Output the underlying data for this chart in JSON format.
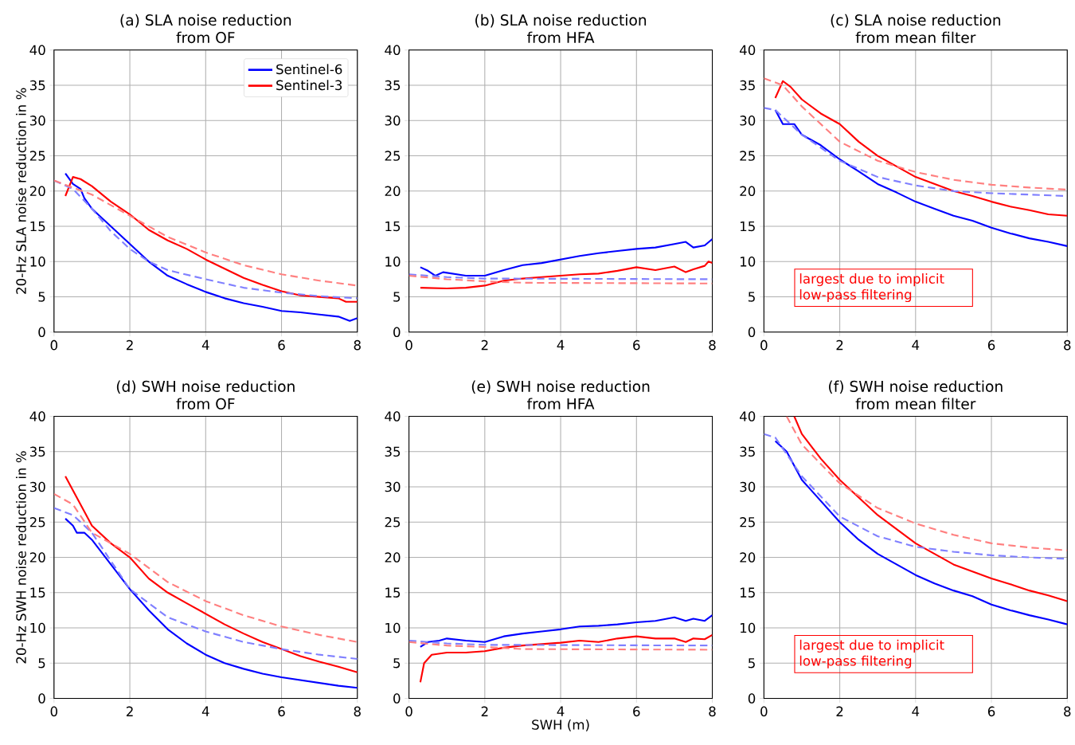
{
  "chart_data": [
    {
      "type": "line",
      "title": "(a) SLA noise reduction",
      "subtitle": "from OF",
      "ylabel": "20-Hz SLA noise reduction in %",
      "xlim": [
        0,
        8
      ],
      "ylim": [
        0,
        40
      ],
      "xticks": [
        0,
        2,
        4,
        6,
        8
      ],
      "yticks": [
        0,
        5,
        10,
        15,
        20,
        25,
        30,
        35,
        40
      ],
      "grid": true,
      "legend": "top right",
      "series": [
        {
          "name": "Sentinel-6",
          "color": "#0000ff",
          "x": [
            0.3,
            0.5,
            0.7,
            0.8,
            1,
            1.5,
            2,
            2.5,
            3,
            3.5,
            4,
            4.5,
            5,
            5.5,
            6,
            6.5,
            7,
            7.5,
            7.8,
            8
          ],
          "values": [
            22.5,
            21,
            20.3,
            19,
            17.5,
            15,
            12.5,
            10,
            8,
            6.8,
            5.7,
            4.8,
            4.1,
            3.6,
            3,
            2.8,
            2.5,
            2.2,
            1.6,
            2
          ]
        },
        {
          "name": "Sentinel-3",
          "color": "#ff0000",
          "x": [
            0.3,
            0.5,
            0.7,
            1,
            1.5,
            2,
            2.5,
            3,
            3.5,
            4,
            4.5,
            5,
            5.5,
            6,
            6.5,
            7,
            7.5,
            7.7,
            8
          ],
          "values": [
            19.3,
            22,
            21.7,
            20.7,
            18.5,
            16.7,
            14.5,
            13,
            11.8,
            10.3,
            9,
            7.7,
            6.7,
            5.8,
            5.2,
            5,
            4.8,
            4.3,
            4.3
          ]
        },
        {
          "color": "#8080ff",
          "line_style": "dashed",
          "x": [
            0,
            0.5,
            1,
            1.5,
            2,
            2.5,
            3,
            4,
            5,
            6,
            7,
            8
          ],
          "values": [
            21.5,
            20.3,
            17.5,
            14.3,
            11.8,
            10,
            8.8,
            7.5,
            6.3,
            5.6,
            5.1,
            4.8
          ]
        },
        {
          "color": "#ff8080",
          "line_style": "dashed",
          "x": [
            0,
            1,
            2,
            3,
            4,
            5,
            6,
            7,
            8
          ],
          "values": [
            21.5,
            19.5,
            16.5,
            13.5,
            11.3,
            9.5,
            8.2,
            7.3,
            6.6
          ]
        }
      ]
    },
    {
      "type": "line",
      "title": "(b) SLA noise reduction",
      "subtitle": "from HFA",
      "xlim": [
        0,
        8
      ],
      "ylim": [
        0,
        40
      ],
      "xticks": [
        0,
        2,
        4,
        6,
        8
      ],
      "yticks": [
        0,
        5,
        10,
        15,
        20,
        25,
        30,
        35,
        40
      ],
      "grid": true,
      "series": [
        {
          "color": "#0000ff",
          "x": [
            0.3,
            0.5,
            0.7,
            0.9,
            1.5,
            2,
            2.5,
            3,
            3.5,
            4,
            4.5,
            5,
            5.5,
            6,
            6.5,
            7,
            7.3,
            7.5,
            7.8,
            8
          ],
          "values": [
            9.2,
            8.7,
            8,
            8.5,
            8,
            8,
            8.8,
            9.5,
            9.8,
            10.3,
            10.8,
            11.2,
            11.5,
            11.8,
            12,
            12.5,
            12.8,
            12,
            12.3,
            13.2
          ]
        },
        {
          "color": "#ff0000",
          "x": [
            0.3,
            1,
            1.5,
            2,
            2.5,
            3,
            3.5,
            4,
            4.5,
            5,
            5.5,
            6,
            6.5,
            7,
            7.3,
            7.5,
            7.8,
            7.9,
            8
          ],
          "values": [
            6.3,
            6.2,
            6.3,
            6.6,
            7.3,
            7.6,
            7.8,
            8,
            8.2,
            8.3,
            8.7,
            9.2,
            8.8,
            9.3,
            8.5,
            8.9,
            9.4,
            10,
            9.8
          ]
        },
        {
          "color": "#8080ff",
          "line_style": "dashed",
          "x": [
            0,
            1,
            2,
            8
          ],
          "values": [
            8.2,
            7.8,
            7.6,
            7.5
          ]
        },
        {
          "color": "#ff8080",
          "line_style": "dashed",
          "x": [
            0,
            1,
            2,
            3,
            8
          ],
          "values": [
            8,
            7.5,
            7.2,
            7,
            6.9
          ]
        }
      ]
    },
    {
      "type": "line",
      "title": "(c) SLA noise reduction",
      "subtitle": "from mean filter",
      "xlim": [
        0,
        8
      ],
      "ylim": [
        0,
        40
      ],
      "xticks": [
        0,
        2,
        4,
        6,
        8
      ],
      "yticks": [
        0,
        5,
        10,
        15,
        20,
        25,
        30,
        35,
        40
      ],
      "grid": true,
      "annotations": [
        "largest due to implicit low-pass filtering"
      ],
      "series": [
        {
          "color": "#0000ff",
          "x": [
            0.3,
            0.5,
            0.8,
            1,
            1.5,
            2,
            2.5,
            3,
            3.5,
            4,
            4.5,
            5,
            5.5,
            6,
            6.5,
            7,
            7.5,
            8
          ],
          "values": [
            31.5,
            29.5,
            29.5,
            28,
            26.5,
            24.5,
            22.8,
            21,
            19.8,
            18.5,
            17.5,
            16.5,
            15.8,
            14.8,
            14,
            13.3,
            12.8,
            12.2
          ]
        },
        {
          "color": "#ff0000",
          "x": [
            0.3,
            0.5,
            0.7,
            1,
            1.5,
            2,
            2.5,
            3,
            3.5,
            4,
            4.5,
            5,
            5.5,
            6,
            6.5,
            7,
            7.5,
            8
          ],
          "values": [
            33.2,
            35.6,
            34.8,
            33,
            31,
            29.5,
            27,
            25,
            23.5,
            22,
            21,
            20,
            19.3,
            18.5,
            17.8,
            17.3,
            16.7,
            16.5
          ]
        },
        {
          "color": "#8080ff",
          "line_style": "dashed",
          "x": [
            0,
            0.3,
            1,
            2,
            3,
            4,
            5,
            6,
            7,
            8
          ],
          "values": [
            31.8,
            31.5,
            28,
            24.3,
            22,
            20.8,
            20,
            19.7,
            19.5,
            19.3
          ]
        },
        {
          "color": "#ff8080",
          "line_style": "dashed",
          "x": [
            0,
            0.5,
            1,
            2,
            3,
            4,
            5,
            6,
            7,
            8
          ],
          "values": [
            36,
            35,
            32,
            27,
            24.3,
            22.7,
            21.6,
            20.9,
            20.5,
            20.2
          ]
        }
      ]
    },
    {
      "type": "line",
      "title": "(d) SWH noise reduction",
      "subtitle": "from OF",
      "ylabel": "20-Hz SWH noise reduction in %",
      "xlim": [
        0,
        8
      ],
      "ylim": [
        0,
        40
      ],
      "xticks": [
        0,
        2,
        4,
        6,
        8
      ],
      "yticks": [
        0,
        5,
        10,
        15,
        20,
        25,
        30,
        35,
        40
      ],
      "grid": true,
      "series": [
        {
          "color": "#0000ff",
          "x": [
            0.3,
            0.5,
            0.6,
            0.8,
            1,
            1.5,
            2,
            2.5,
            3,
            3.5,
            4,
            4.5,
            5,
            5.5,
            6,
            6.5,
            7,
            7.5,
            8
          ],
          "values": [
            25.5,
            24.5,
            23.5,
            23.5,
            22.5,
            19,
            15.5,
            12.5,
            9.8,
            7.8,
            6.2,
            5,
            4.2,
            3.5,
            3,
            2.6,
            2.2,
            1.8,
            1.5
          ]
        },
        {
          "color": "#ff0000",
          "x": [
            0.3,
            0.5,
            0.8,
            1,
            1.5,
            2,
            2.5,
            3,
            3.5,
            4,
            4.5,
            5,
            5.5,
            6,
            6.5,
            7,
            7.5,
            8
          ],
          "values": [
            31.5,
            29.5,
            26.5,
            24.5,
            22,
            20,
            17,
            15,
            13.5,
            12,
            10.5,
            9.2,
            8,
            7,
            6,
            5.2,
            4.5,
            3.7
          ]
        },
        {
          "color": "#8080ff",
          "line_style": "dashed",
          "x": [
            0,
            0.5,
            1,
            2,
            3,
            4,
            5,
            6,
            7,
            8
          ],
          "values": [
            27,
            26,
            23.5,
            15.5,
            11.5,
            9.5,
            8,
            7,
            6.2,
            5.6
          ]
        },
        {
          "color": "#ff8080",
          "line_style": "dashed",
          "x": [
            0,
            0.5,
            1,
            2,
            3,
            4,
            5,
            6,
            7,
            8
          ],
          "values": [
            29,
            27.5,
            23.5,
            20.5,
            16.5,
            13.8,
            11.8,
            10.2,
            9,
            8
          ]
        }
      ]
    },
    {
      "type": "line",
      "title": "(e) SWH noise reduction",
      "subtitle": "from HFA",
      "xlabel": "SWH (m)",
      "xlim": [
        0,
        8
      ],
      "ylim": [
        0,
        40
      ],
      "xticks": [
        0,
        2,
        4,
        6,
        8
      ],
      "yticks": [
        0,
        5,
        10,
        15,
        20,
        25,
        30,
        35,
        40
      ],
      "grid": true,
      "series": [
        {
          "color": "#0000ff",
          "x": [
            0.3,
            0.5,
            0.8,
            1,
            1.5,
            2,
            2.5,
            3,
            3.5,
            4,
            4.5,
            5,
            5.5,
            6,
            6.5,
            7,
            7.3,
            7.5,
            7.8,
            8
          ],
          "values": [
            7.3,
            8,
            8.2,
            8.5,
            8.2,
            8,
            8.8,
            9.2,
            9.5,
            9.8,
            10.2,
            10.3,
            10.5,
            10.8,
            11,
            11.5,
            11,
            11.3,
            11,
            11.8
          ]
        },
        {
          "color": "#ff0000",
          "x": [
            0.3,
            0.4,
            0.6,
            1,
            1.5,
            2,
            2.5,
            3,
            3.5,
            4,
            4.5,
            5,
            5.5,
            6,
            6.5,
            7,
            7.3,
            7.5,
            7.8,
            8
          ],
          "values": [
            2.3,
            5,
            6.2,
            6.5,
            6.5,
            6.7,
            7.2,
            7.5,
            7.7,
            7.9,
            8.2,
            8,
            8.5,
            8.8,
            8.5,
            8.5,
            8,
            8.5,
            8.4,
            9
          ]
        },
        {
          "color": "#8080ff",
          "line_style": "dashed",
          "x": [
            0,
            1,
            2,
            8
          ],
          "values": [
            8.2,
            7.8,
            7.6,
            7.5
          ]
        },
        {
          "color": "#ff8080",
          "line_style": "dashed",
          "x": [
            0,
            1,
            2,
            3,
            8
          ],
          "values": [
            8,
            7.5,
            7.3,
            7,
            6.9
          ]
        }
      ]
    },
    {
      "type": "line",
      "title": "(f) SWH noise reduction",
      "subtitle": "from mean filter",
      "xlim": [
        0,
        8
      ],
      "ylim": [
        0,
        40
      ],
      "xticks": [
        0,
        2,
        4,
        6,
        8
      ],
      "yticks": [
        0,
        5,
        10,
        15,
        20,
        25,
        30,
        35,
        40
      ],
      "grid": true,
      "annotations": [
        "largest due to implicit low-pass filtering"
      ],
      "series": [
        {
          "color": "#0000ff",
          "x": [
            0.3,
            0.6,
            0.8,
            1,
            1.5,
            2,
            2.5,
            3,
            3.5,
            4,
            4.5,
            5,
            5.5,
            6,
            6.5,
            7,
            7.5,
            8
          ],
          "values": [
            36.5,
            35,
            33,
            31,
            28,
            25,
            22.5,
            20.5,
            19,
            17.5,
            16.3,
            15.3,
            14.5,
            13.3,
            12.5,
            11.8,
            11.2,
            10.5
          ]
        },
        {
          "color": "#ff0000",
          "x": [
            0.8,
            1,
            1.5,
            2,
            2.5,
            3,
            3.5,
            4,
            4.5,
            5,
            5.5,
            6,
            6.5,
            7,
            7.5,
            8
          ],
          "values": [
            40,
            37.5,
            34,
            31,
            28.5,
            26,
            24,
            22,
            20.5,
            19,
            18,
            17,
            16.2,
            15.3,
            14.6,
            13.8
          ]
        },
        {
          "color": "#8080ff",
          "line_style": "dashed",
          "x": [
            0,
            0.3,
            1,
            2,
            3,
            4,
            5,
            6,
            7,
            8
          ],
          "values": [
            37.5,
            37,
            31.5,
            25.8,
            23,
            21.5,
            20.8,
            20.3,
            20,
            19.8
          ]
        },
        {
          "color": "#ff8080",
          "line_style": "dashed",
          "x": [
            0.6,
            1,
            2,
            3,
            4,
            5,
            6,
            7,
            8
          ],
          "values": [
            40,
            36,
            30.5,
            27,
            24.8,
            23.2,
            22,
            21.4,
            21
          ]
        }
      ]
    }
  ]
}
